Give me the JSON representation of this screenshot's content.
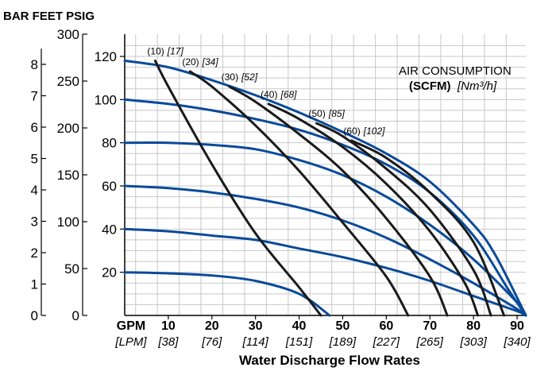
{
  "header": {
    "units": "BAR FEET PSIG"
  },
  "legend": {
    "line1": "AIR CONSUMPTION",
    "line2_bold": "(SCFM)",
    "line2_italic": "[Nm³/h]"
  },
  "x_axis": {
    "title": "Water Discharge Flow Rates",
    "gpm_label": "GPM",
    "lpm_label": "[LPM]",
    "gpm_ticks": [
      "10",
      "20",
      "30",
      "40",
      "50",
      "60",
      "70",
      "80",
      "90"
    ],
    "lpm_ticks": [
      "[38]",
      "[76]",
      "[114]",
      "[151]",
      "[189]",
      "[227]",
      "[265]",
      "[303]",
      "[340]"
    ]
  },
  "axes": {
    "bar_ticks": [
      "0",
      "1",
      "2",
      "3",
      "4",
      "5",
      "6",
      "7",
      "8"
    ],
    "feet_ticks": [
      "0",
      "50",
      "100",
      "150",
      "200",
      "250",
      "300"
    ],
    "psig_ticks": [
      "20",
      "40",
      "60",
      "80",
      "100",
      "120"
    ]
  },
  "chart_data": {
    "type": "line",
    "x_unit": "GPM",
    "y_unit": "PSIG",
    "xlim": [
      0,
      92
    ],
    "ylim": [
      0,
      125
    ],
    "grid": true,
    "series": [
      {
        "name": "120 PSIG",
        "kind": "discharge",
        "x": [
          0,
          10,
          20,
          30,
          40,
          50,
          60,
          70,
          80,
          85,
          92
        ],
        "y": [
          118,
          115,
          109,
          102,
          94,
          85,
          75,
          62,
          42,
          28,
          0
        ]
      },
      {
        "name": "100 PSIG",
        "kind": "discharge",
        "x": [
          0,
          10,
          20,
          30,
          40,
          50,
          60,
          70,
          80,
          88,
          92
        ],
        "y": [
          100,
          98,
          95,
          91,
          86,
          79,
          70,
          57,
          37,
          12,
          0
        ]
      },
      {
        "name": "80 PSIG",
        "kind": "discharge",
        "x": [
          0,
          10,
          20,
          30,
          40,
          50,
          60,
          70,
          80,
          90,
          92
        ],
        "y": [
          80,
          80,
          79,
          77,
          72,
          65,
          55,
          42,
          26,
          6,
          0
        ]
      },
      {
        "name": "60 PSIG",
        "kind": "discharge",
        "x": [
          0,
          10,
          20,
          30,
          40,
          50,
          60,
          70,
          80,
          90,
          92
        ],
        "y": [
          60,
          59,
          57,
          54,
          50,
          44,
          36,
          26,
          15,
          3,
          0
        ]
      },
      {
        "name": "40 PSIG",
        "kind": "discharge",
        "x": [
          0,
          10,
          20,
          30,
          40,
          50,
          60,
          70,
          80,
          90,
          92
        ],
        "y": [
          40,
          39,
          37,
          35,
          31,
          27,
          22,
          16,
          9,
          2,
          0
        ]
      },
      {
        "name": "20 PSIG",
        "kind": "discharge",
        "x": [
          0,
          10,
          20,
          30,
          40,
          47
        ],
        "y": [
          20,
          19.5,
          18.5,
          16,
          10,
          0
        ]
      },
      {
        "name": "(10) [17]",
        "kind": "air",
        "x": [
          7,
          10,
          20,
          30,
          40,
          45
        ],
        "y": [
          118,
          106,
          70,
          38,
          13,
          0
        ]
      },
      {
        "name": "(20) [34]",
        "kind": "air",
        "x": [
          15,
          20,
          30,
          40,
          50,
          60,
          65
        ],
        "y": [
          113,
          106,
          88,
          67,
          43,
          18,
          0
        ]
      },
      {
        "name": "(30) [52]",
        "kind": "air",
        "x": [
          24,
          30,
          40,
          50,
          60,
          70,
          74
        ],
        "y": [
          106,
          99,
          84,
          67,
          45,
          18,
          0
        ]
      },
      {
        "name": "(40) [68]",
        "kind": "air",
        "x": [
          33,
          40,
          50,
          60,
          70,
          78,
          81
        ],
        "y": [
          98,
          91,
          78,
          61,
          39,
          15,
          0
        ]
      },
      {
        "name": "(50) [85]",
        "kind": "air",
        "x": [
          44,
          50,
          60,
          70,
          80,
          84
        ],
        "y": [
          89,
          83,
          68,
          49,
          21,
          0
        ]
      },
      {
        "name": "(60) [102]",
        "kind": "air",
        "x": [
          52,
          60,
          70,
          80,
          87
        ],
        "y": [
          81,
          73,
          57,
          34,
          0
        ]
      }
    ],
    "air_labels": [
      {
        "scfm": "(10)",
        "nm3h": "[17]"
      },
      {
        "scfm": "(20)",
        "nm3h": "[34]"
      },
      {
        "scfm": "(30)",
        "nm3h": "[52]"
      },
      {
        "scfm": "(40)",
        "nm3h": "[68]"
      },
      {
        "scfm": "(50)",
        "nm3h": "[85]"
      },
      {
        "scfm": "(60)",
        "nm3h": "[102]"
      }
    ],
    "colors": {
      "discharge": "#0a4a9a",
      "air": "#1a1a1a",
      "grid": "#c8c8c8"
    }
  }
}
